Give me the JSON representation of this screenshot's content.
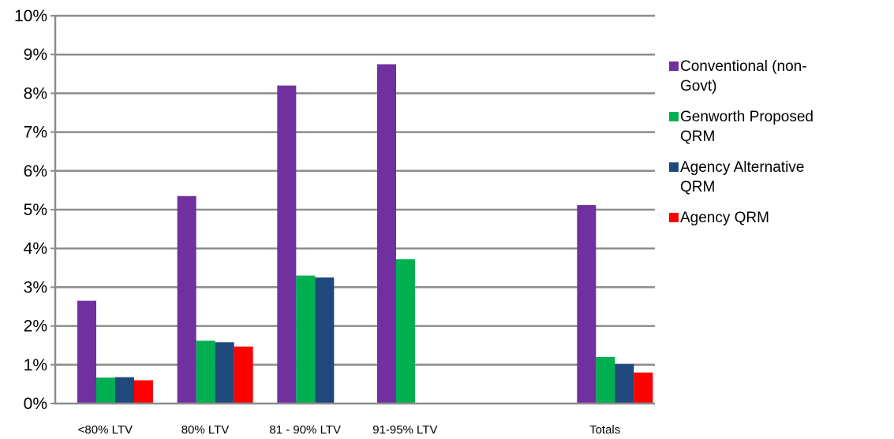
{
  "chart_data": {
    "type": "bar",
    "title": "",
    "xlabel": "",
    "ylabel": "",
    "ylim": [
      0,
      10
    ],
    "y_ticks": [
      "0%",
      "1%",
      "2%",
      "3%",
      "4%",
      "5%",
      "6%",
      "7%",
      "8%",
      "9%",
      "10%"
    ],
    "grid": true,
    "legend_position": "right",
    "categories": [
      "<80% LTV",
      "80% LTV",
      "81 - 90%  LTV",
      "91-95% LTV",
      "",
      "Totals"
    ],
    "series": [
      {
        "name": "Conventional (non-Govt)",
        "legend_lines": [
          "Conventional (non-",
          "Govt)"
        ],
        "color": "#7030A0",
        "values": [
          2.65,
          5.35,
          8.2,
          8.75,
          null,
          5.12
        ]
      },
      {
        "name": "Genworth Proposed QRM",
        "legend_lines": [
          "Genworth Proposed",
          "QRM"
        ],
        "color": "#00B050",
        "values": [
          0.67,
          1.62,
          3.3,
          3.72,
          null,
          1.2
        ]
      },
      {
        "name": "Agency Alternative QRM",
        "legend_lines": [
          "Agency Alternative",
          "QRM"
        ],
        "color": "#1F497D",
        "values": [
          0.68,
          1.58,
          3.25,
          null,
          null,
          1.02
        ]
      },
      {
        "name": "Agency QRM",
        "legend_lines": [
          "Agency QRM"
        ],
        "color": "#FF0000",
        "values": [
          0.6,
          1.47,
          null,
          null,
          null,
          0.8
        ]
      }
    ]
  }
}
